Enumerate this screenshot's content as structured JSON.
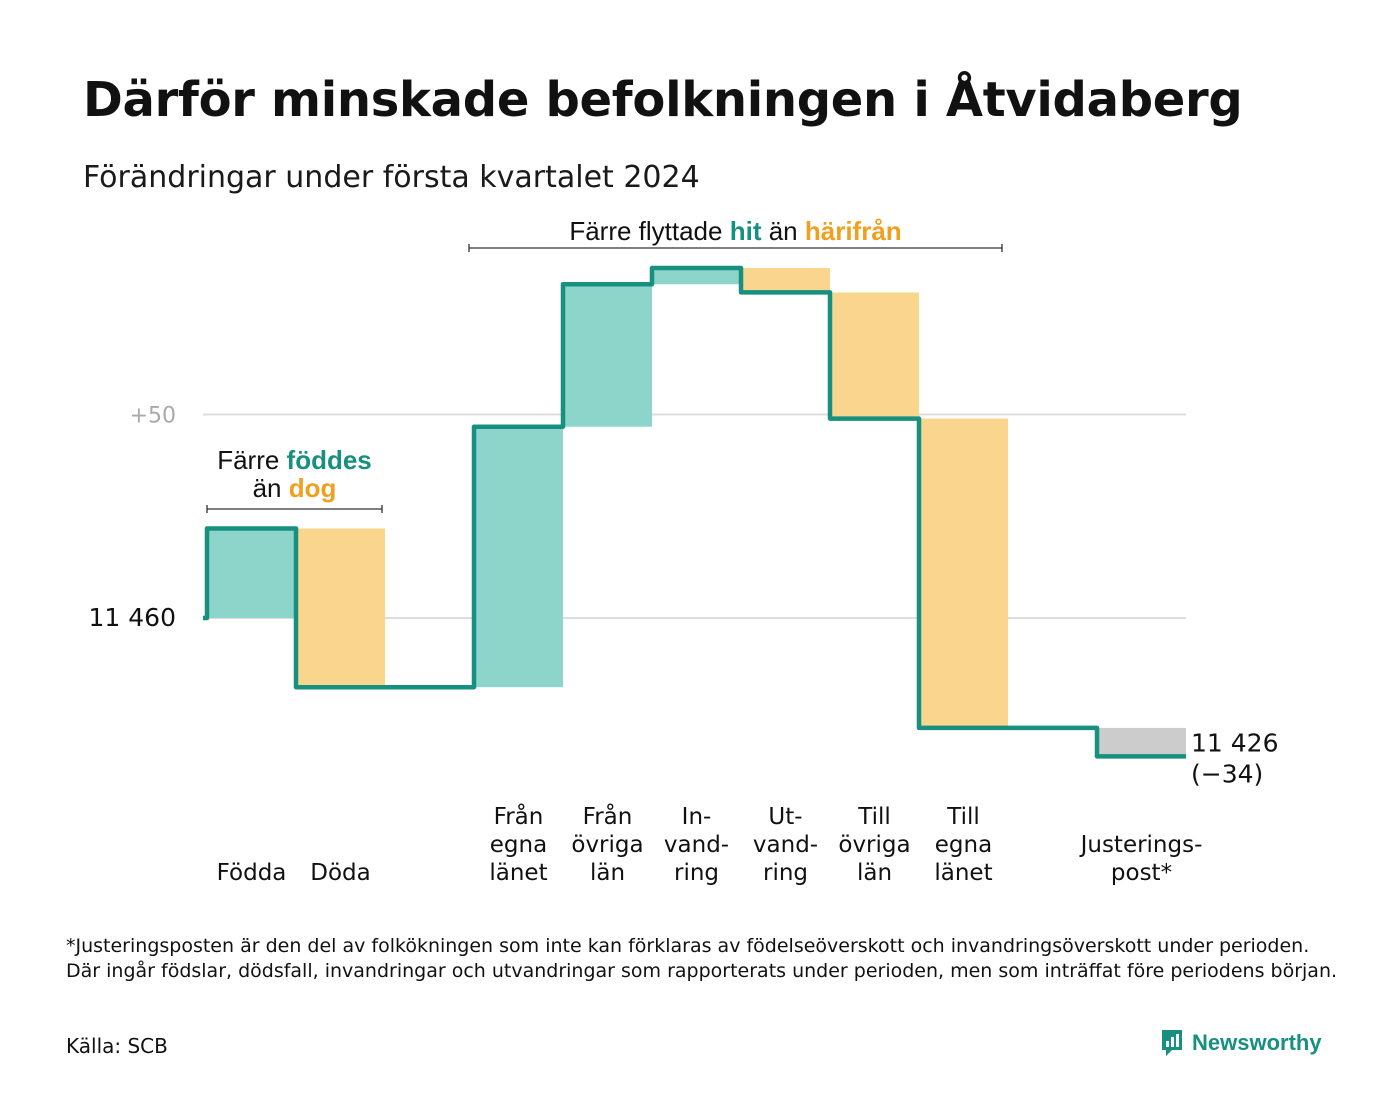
{
  "title": "Därför minskade befolkningen i Åtvidaberg",
  "subtitle": "Förändringar under första kvartalet 2024",
  "footnote": "*Justeringsposten är den del av folkökningen som inte kan förklaras av födelseöverskott och invandringsöverskott under perioden. Där ingår födslar, dödsfall, invandringar och utvandringar som rapporterats under perioden, men som inträffat före periodens början.",
  "source": "Källa: SCB",
  "brand": "Newsworthy",
  "colors": {
    "increase": "#8dd4cb",
    "decrease": "#fad58e",
    "adjustment": "#cccccc",
    "line": "#17907f",
    "highlight_orange": "#f0a020",
    "grid": "#dddddd"
  },
  "chart_data": {
    "type": "waterfall",
    "start_value": 11460,
    "end_value": 11426,
    "change": -34,
    "y_reference": 11510,
    "start_label": "11  460",
    "end_label": "11 426",
    "change_label": "(−34)",
    "gridline_label": "+50",
    "steps": [
      {
        "label": "Födda",
        "value": 22,
        "kind": "increase"
      },
      {
        "label": "Döda",
        "value": -39,
        "kind": "decrease"
      },
      {
        "label": "",
        "value": 0,
        "kind": "none"
      },
      {
        "label": "Från egna länet",
        "value": 64,
        "kind": "increase"
      },
      {
        "label": "Från övriga län",
        "value": 35,
        "kind": "increase"
      },
      {
        "label": "In-vand-ring",
        "value": 4,
        "kind": "increase"
      },
      {
        "label": "Ut-vand-ring",
        "value": -6,
        "kind": "decrease"
      },
      {
        "label": "Till övriga län",
        "value": -31,
        "kind": "decrease"
      },
      {
        "label": "Till egna länet",
        "value": -76,
        "kind": "decrease"
      },
      {
        "label": "",
        "value": 0,
        "kind": "none"
      },
      {
        "label": "Justerings-post*",
        "value": -7,
        "kind": "adjustment"
      }
    ],
    "annotations": [
      {
        "pre": "Färre",
        "highlight1": "föddes",
        "line2_pre": "än",
        "highlight2": "dog"
      },
      {
        "pre": "Färre flyttade",
        "highlight1": "hit",
        "mid": "än",
        "highlight2": "härifrån"
      }
    ]
  }
}
